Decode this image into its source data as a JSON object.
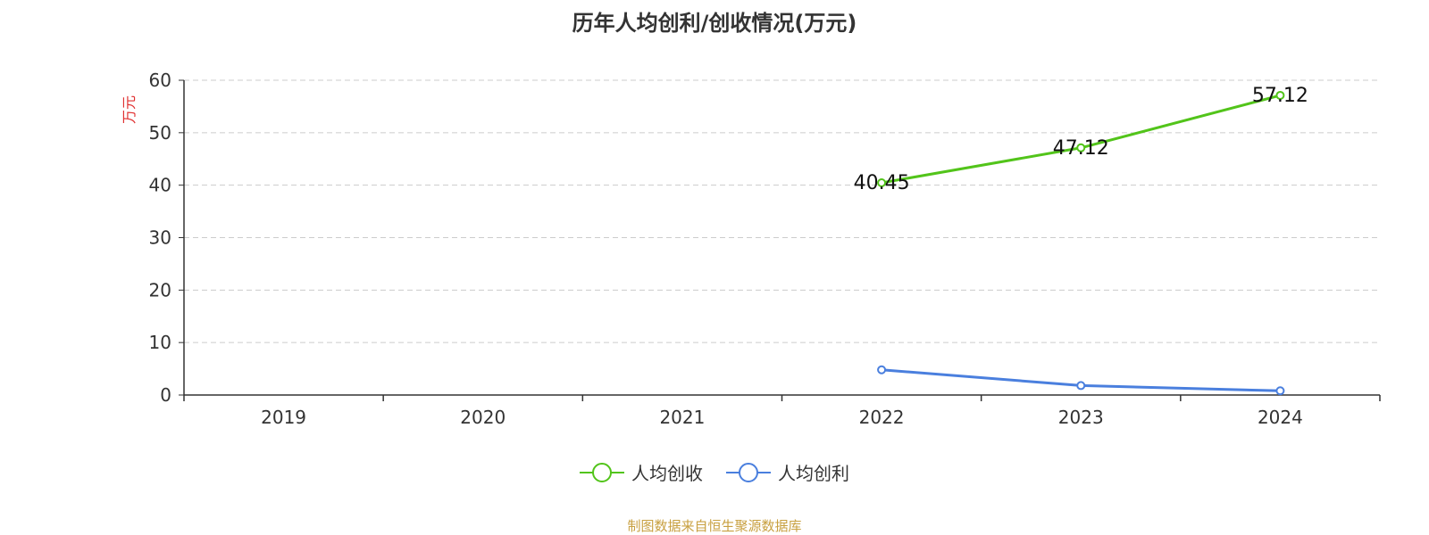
{
  "chart_data": {
    "type": "line",
    "title": "历年人均创利/创收情况(万元)",
    "ylabel": "万元",
    "xlabel": "",
    "categories": [
      "2019",
      "2020",
      "2021",
      "2022",
      "2023",
      "2024"
    ],
    "ylim": [
      0,
      60
    ],
    "yticks": [
      0,
      10,
      20,
      30,
      40,
      50,
      60
    ],
    "grid": true,
    "legend_position": "bottom",
    "series": [
      {
        "name": "人均创收",
        "color": "#52c41a",
        "values": [
          null,
          null,
          null,
          40.45,
          47.12,
          57.12
        ],
        "labels": [
          null,
          null,
          null,
          "40.45",
          "47.12",
          "57.12"
        ]
      },
      {
        "name": "人均创利",
        "color": "#4a7fde",
        "values": [
          null,
          null,
          null,
          4.8,
          1.8,
          0.8
        ],
        "labels": [
          null,
          null,
          null,
          null,
          null,
          null
        ]
      }
    ]
  },
  "source": "制图数据来自恒生聚源数据库",
  "colors": {
    "axis": "#333333",
    "grid": "#cccccc",
    "ylabel": "#e03030",
    "source": "#c8a040"
  }
}
